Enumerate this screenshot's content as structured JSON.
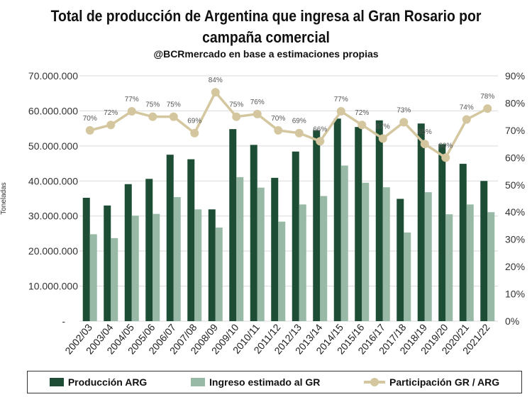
{
  "chart_data": {
    "type": "bar+line",
    "title": "Total de producción de Argentina que ingresa al Gran Rosario por campaña comercial",
    "subtitle": "@BCRmercado  en base a estimaciones propias",
    "ylabel": "Toneladas",
    "ylim": [
      0,
      70000000
    ],
    "y2lim": [
      0,
      0.9
    ],
    "yticks": [
      "-",
      "10.000.000",
      "20.000.000",
      "30.000.000",
      "40.000.000",
      "50.000.000",
      "60.000.000",
      "70.000.000"
    ],
    "y2ticks": [
      "0%",
      "10%",
      "20%",
      "30%",
      "40%",
      "50%",
      "60%",
      "70%",
      "80%",
      "90%"
    ],
    "grid": true,
    "legend": "bottom",
    "categories": [
      "2002/03",
      "2003/04",
      "2004/05",
      "2005/06",
      "2006/07",
      "2007/08",
      "2008/09",
      "2009/10",
      "2010/11",
      "2011/12",
      "2012/13",
      "2013/14",
      "2014/15",
      "2015/16",
      "2016/17",
      "2017/18",
      "2018/19",
      "2019/20",
      "2020/21",
      "2021/22"
    ],
    "series": [
      {
        "name": "Producción ARG",
        "type": "bar",
        "axis": "left",
        "color": "#1d4d35",
        "values": [
          35200000,
          33000000,
          39100000,
          40600000,
          47500000,
          46200000,
          31900000,
          54800000,
          50300000,
          40900000,
          48400000,
          54500000,
          57800000,
          55400000,
          57300000,
          34900000,
          56400000,
          50500000,
          44900000,
          40000000
        ]
      },
      {
        "name": "Ingreso estimado al GR",
        "type": "bar",
        "axis": "left",
        "color": "#97b9a6",
        "values": [
          24800000,
          23700000,
          30100000,
          30600000,
          35400000,
          31900000,
          26700000,
          41100000,
          38100000,
          28400000,
          33300000,
          35700000,
          44400000,
          39500000,
          38200000,
          25300000,
          36800000,
          30500000,
          33300000,
          31100000
        ]
      },
      {
        "name": "Participación GR / ARG",
        "type": "line",
        "axis": "right",
        "color": "#d4c79f",
        "values": [
          0.7,
          0.72,
          0.77,
          0.75,
          0.75,
          0.69,
          0.84,
          0.75,
          0.76,
          0.7,
          0.69,
          0.66,
          0.77,
          0.72,
          0.67,
          0.73,
          0.65,
          0.6,
          0.74,
          0.78
        ],
        "labels": [
          "70%",
          "72%",
          "77%",
          "75%",
          "75%",
          "69%",
          "84%",
          "75%",
          "76%",
          "70%",
          "69%",
          "66%",
          "77%",
          "72%",
          "67%",
          "73%",
          "65%",
          "60%",
          "74%",
          "78%"
        ]
      }
    ]
  }
}
